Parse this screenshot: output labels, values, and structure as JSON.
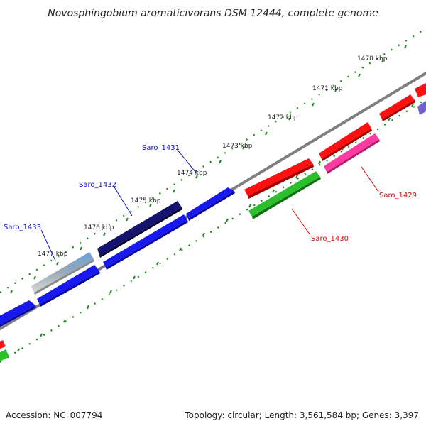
{
  "title": "Novosphingobium aromaticivorans DSM 12444, complete genome",
  "accession_text": "Accession: NC_007794",
  "topology_text": "Topology: circular; Length: 3,561,584 bp; Genes: 3,397",
  "colors": {
    "backbone": "#7f7f7f",
    "tick": "#1a8a1a",
    "label_blue": "#1010cc",
    "label_red": "#dd0000"
  },
  "ticks": [
    {
      "label": "1470 kbp"
    },
    {
      "label": "1471 kbp"
    },
    {
      "label": "1472 kbp"
    },
    {
      "label": "1473 kbp"
    },
    {
      "label": "1474 kbp"
    },
    {
      "label": "1475 kbp"
    },
    {
      "label": "1476 kbp"
    },
    {
      "label": "1477 kbp"
    }
  ],
  "gene_labels": [
    {
      "name": "Saro_1429",
      "strand": "minus",
      "color": "#dd0000"
    },
    {
      "name": "Saro_1430",
      "strand": "minus",
      "color": "#dd0000"
    },
    {
      "name": "Saro_1431",
      "strand": "plus",
      "color": "#1010cc"
    },
    {
      "name": "Saro_1432",
      "strand": "plus",
      "color": "#1010cc"
    },
    {
      "name": "Saro_1433",
      "strand": "plus",
      "color": "#1010cc"
    }
  ]
}
